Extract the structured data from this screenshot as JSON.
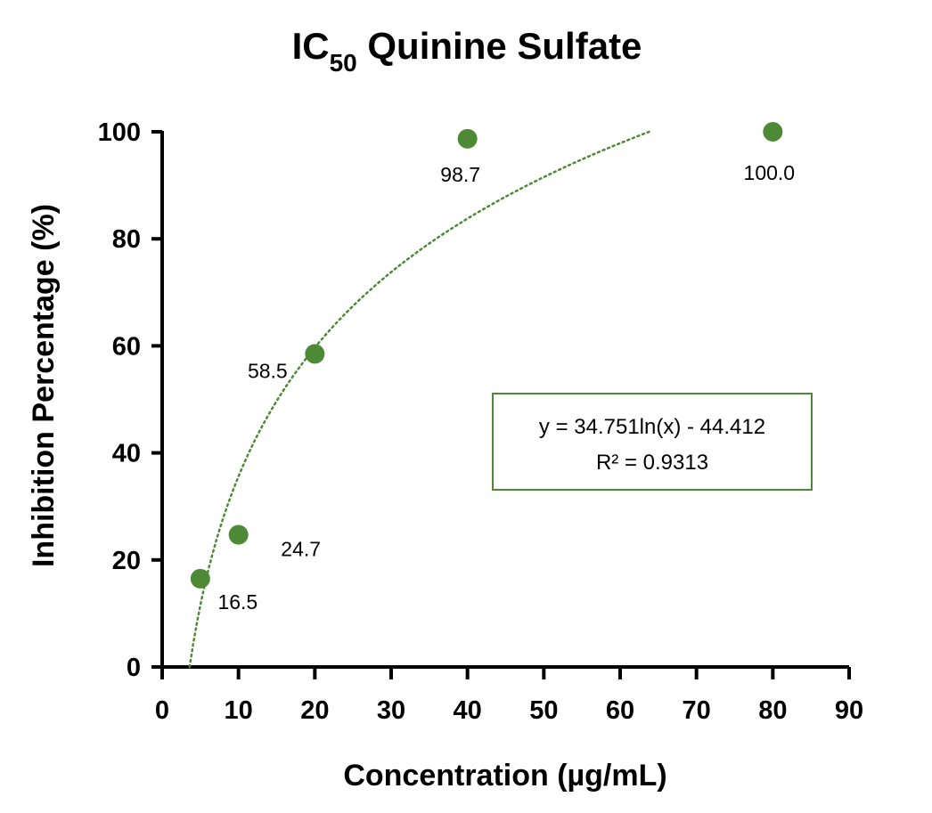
{
  "chart_data": {
    "type": "scatter",
    "title": {
      "main": "IC",
      "subscript": "50",
      "rest": " Quinine Sulfate"
    },
    "xlabel": "Concentration (µg/mL)",
    "ylabel": "Inhibition Percentage (%)",
    "xlim": [
      0,
      90
    ],
    "ylim": [
      0,
      100
    ],
    "xticks": [
      0,
      10,
      20,
      30,
      40,
      50,
      60,
      70,
      80,
      90
    ],
    "yticks": [
      0,
      20,
      40,
      60,
      80,
      100
    ],
    "grid": false,
    "series": [
      {
        "x": [
          5,
          10,
          20,
          40,
          80
        ],
        "y": [
          16.5,
          24.7,
          58.5,
          98.7,
          100.0
        ],
        "labels": [
          "16.5",
          "24.7",
          "58.5",
          "98.7",
          "100.0"
        ],
        "color": "#4e8a36"
      }
    ],
    "trendline": {
      "type": "logarithmic",
      "a": 34.751,
      "b": -44.412,
      "color": "#4e8a36",
      "style": "dotted",
      "equation": "y = 34.751ln(x) - 44.412",
      "r_squared": "R² = 0.9313",
      "box_border_color": "#4e8a36"
    }
  }
}
